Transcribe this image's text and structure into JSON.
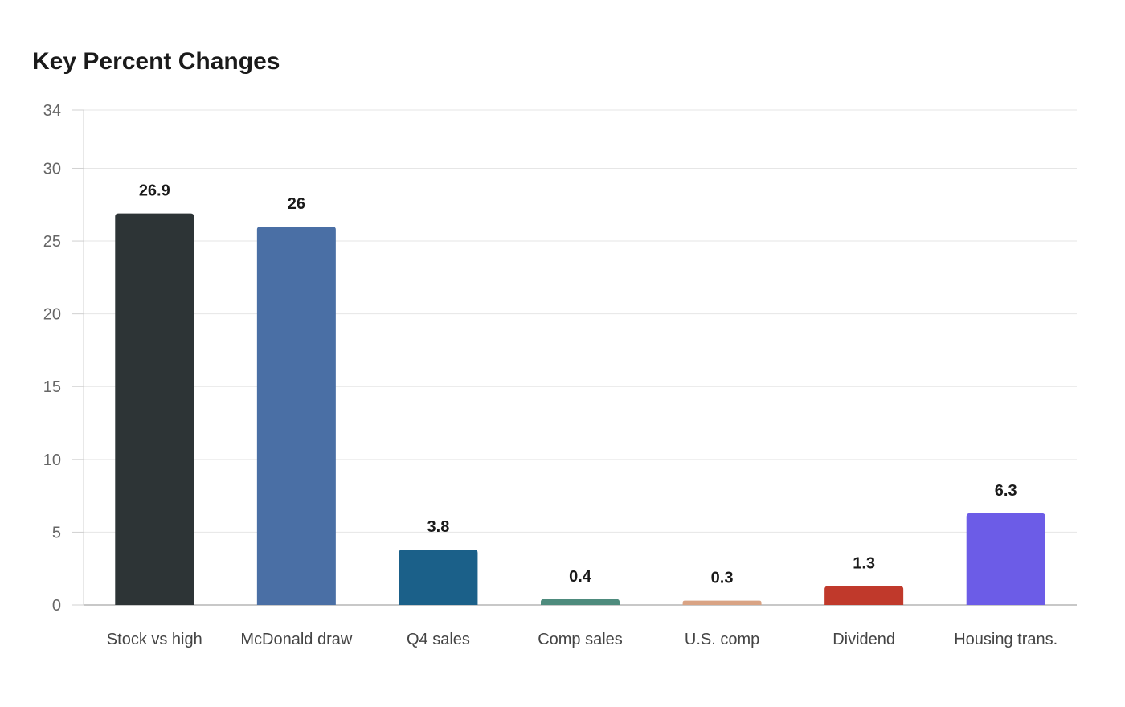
{
  "chart_data": {
    "type": "bar",
    "title": "Key Percent Changes",
    "xlabel": "",
    "ylabel": "",
    "categories": [
      "Stock vs high",
      "McDonald draw",
      "Q4 sales",
      "Comp sales",
      "U.S. comp",
      "Dividend",
      "Housing trans."
    ],
    "values": [
      26.9,
      26,
      3.8,
      0.4,
      0.3,
      1.3,
      6.3
    ],
    "value_labels": [
      "26.9",
      "26",
      "3.8",
      "0.4",
      "0.3",
      "1.3",
      "6.3"
    ],
    "colors": [
      "#2d3436",
      "#4a6fa5",
      "#1b6089",
      "#4e8b7d",
      "#d9a384",
      "#c0392b",
      "#6c5ce7"
    ],
    "ylim": [
      0,
      34
    ],
    "yticks": [
      0,
      5,
      10,
      15,
      20,
      25,
      30,
      34
    ],
    "grid": true,
    "legend": "none"
  }
}
